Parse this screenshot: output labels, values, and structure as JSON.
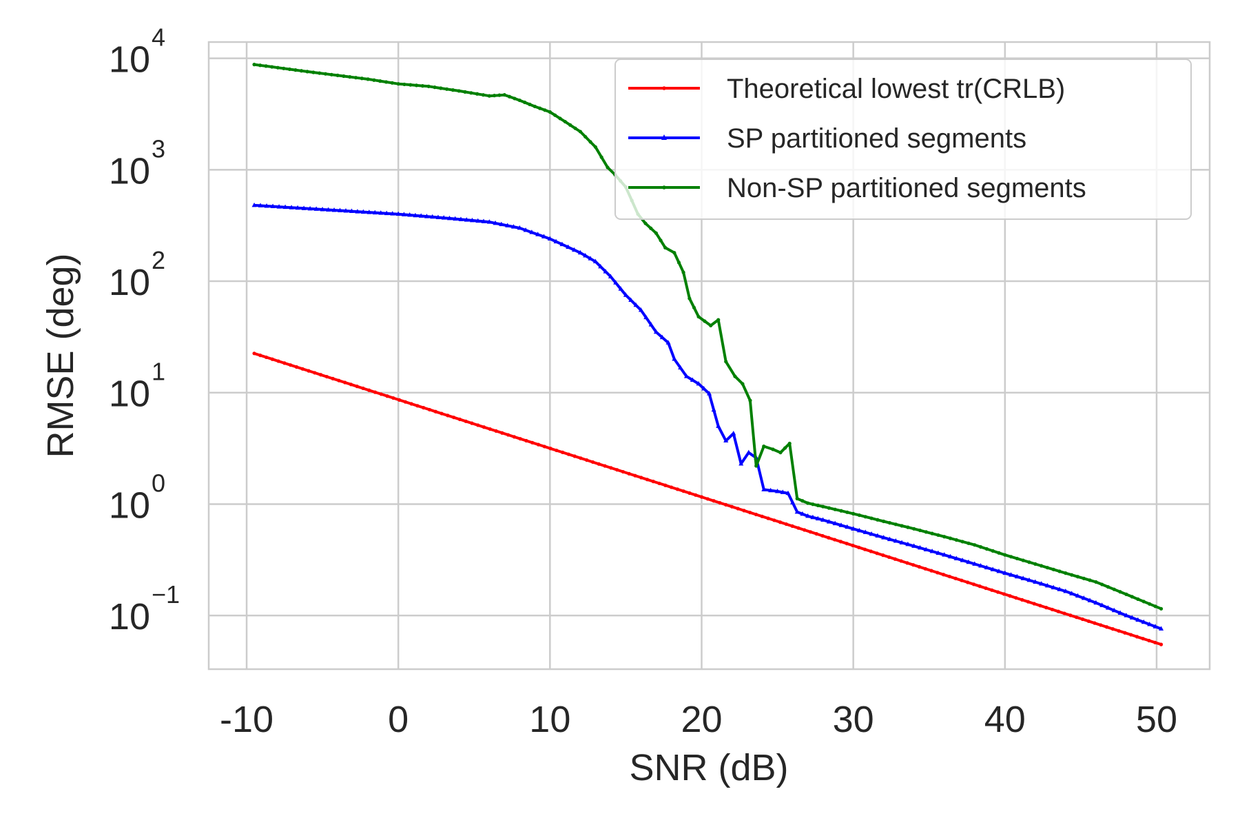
{
  "chart_data": {
    "type": "line",
    "title": "",
    "xlabel": "SNR (dB)",
    "ylabel": "RMSE (deg)",
    "xscale": "linear",
    "yscale": "log",
    "xlim": [
      -12.5,
      53.5
    ],
    "ylim": [
      0.033,
      14000
    ],
    "grid": true,
    "legend_position": "top-right",
    "x_ticks": [
      {
        "value": -10,
        "label": "-10"
      },
      {
        "value": 0,
        "label": "0"
      },
      {
        "value": 10,
        "label": "10"
      },
      {
        "value": 20,
        "label": "20"
      },
      {
        "value": 30,
        "label": "30"
      },
      {
        "value": 40,
        "label": "40"
      },
      {
        "value": 50,
        "label": "50"
      }
    ],
    "y_ticks": [
      {
        "value": 0.1,
        "base": "10",
        "exp": "−1"
      },
      {
        "value": 1,
        "base": "10",
        "exp": "0"
      },
      {
        "value": 10,
        "base": "10",
        "exp": "1"
      },
      {
        "value": 100,
        "base": "10",
        "exp": "2"
      },
      {
        "value": 1000,
        "base": "10",
        "exp": "3"
      },
      {
        "value": 10000,
        "base": "10",
        "exp": "4"
      }
    ],
    "series": [
      {
        "name": "Theoretical lowest tr(CRLB)",
        "color": "#ff0000",
        "marker": "dot",
        "x": [
          -9.5,
          50.3
        ],
        "y": [
          22.5,
          0.055
        ]
      },
      {
        "name": "SP partitioned segments",
        "color": "#0000ff",
        "marker": "triangle",
        "x": [
          -9.5,
          -5,
          0,
          3,
          6,
          8,
          10,
          12,
          13,
          14,
          15,
          16,
          17,
          17.8,
          18.2,
          19,
          19.8,
          20.5,
          21.1,
          21.6,
          22.1,
          22.6,
          23.1,
          23.6,
          24.1,
          25,
          25.7,
          26.3,
          27,
          28,
          30,
          32,
          34,
          36,
          38,
          40,
          42,
          44,
          46,
          48,
          50.3
        ],
        "y": [
          480,
          440,
          400,
          370,
          340,
          300,
          240,
          180,
          150,
          110,
          75,
          55,
          35,
          28,
          20,
          14,
          12,
          9.8,
          5.0,
          3.7,
          4.3,
          2.3,
          2.9,
          2.6,
          1.35,
          1.3,
          1.25,
          0.85,
          0.78,
          0.72,
          0.6,
          0.5,
          0.42,
          0.35,
          0.29,
          0.24,
          0.2,
          0.165,
          0.13,
          0.1,
          0.076
        ]
      },
      {
        "name": "Non-SP partitioned segments",
        "color": "#008000",
        "marker": "dot",
        "x": [
          -9.5,
          -6,
          -2,
          0,
          2,
          4,
          6,
          7,
          8,
          9,
          10,
          11,
          12,
          13,
          13.8,
          14.3,
          15,
          15.8,
          16.3,
          17,
          17.6,
          18.2,
          18.8,
          19.2,
          19.8,
          20.6,
          21.1,
          21.6,
          22.2,
          22.7,
          23.2,
          23.6,
          24.1,
          24.7,
          25.2,
          25.8,
          26.3,
          27,
          28,
          30,
          32,
          34,
          36,
          38,
          40,
          42,
          44,
          46,
          48,
          50.3
        ],
        "y": [
          8800,
          7600,
          6500,
          5900,
          5600,
          5100,
          4600,
          4700,
          4200,
          3700,
          3300,
          2700,
          2200,
          1600,
          1050,
          900,
          700,
          400,
          330,
          270,
          200,
          180,
          120,
          70,
          48,
          40,
          45,
          19,
          14,
          12,
          8.5,
          2.2,
          3.3,
          3.1,
          2.9,
          3.5,
          1.12,
          1.02,
          0.95,
          0.82,
          0.7,
          0.6,
          0.51,
          0.43,
          0.35,
          0.29,
          0.24,
          0.2,
          0.155,
          0.115
        ]
      }
    ]
  }
}
